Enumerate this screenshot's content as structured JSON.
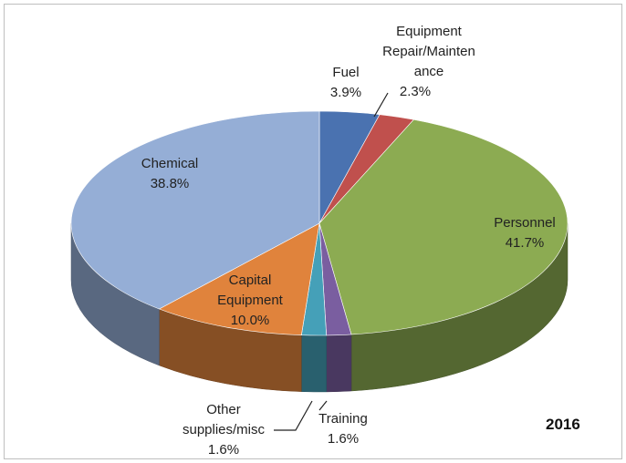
{
  "chart_data": {
    "type": "pie3d",
    "title": "2016",
    "categories": [
      "Fuel",
      "Equipment Repair/Maintenance",
      "Personnel",
      "Training",
      "Other supplies/misc",
      "Capital Equipment",
      "Chemical"
    ],
    "values": [
      3.9,
      2.3,
      41.7,
      1.6,
      1.6,
      10.0,
      38.8
    ],
    "value_labels": [
      "3.9%",
      "2.3%",
      "41.7%",
      "1.6%",
      "1.6%",
      "10.0%",
      "38.8%"
    ],
    "colors": [
      "#4a72b0",
      "#c0504d",
      "#8cab52",
      "#7a5ea0",
      "#45a0b8",
      "#e0833c",
      "#95aed6"
    ]
  }
}
